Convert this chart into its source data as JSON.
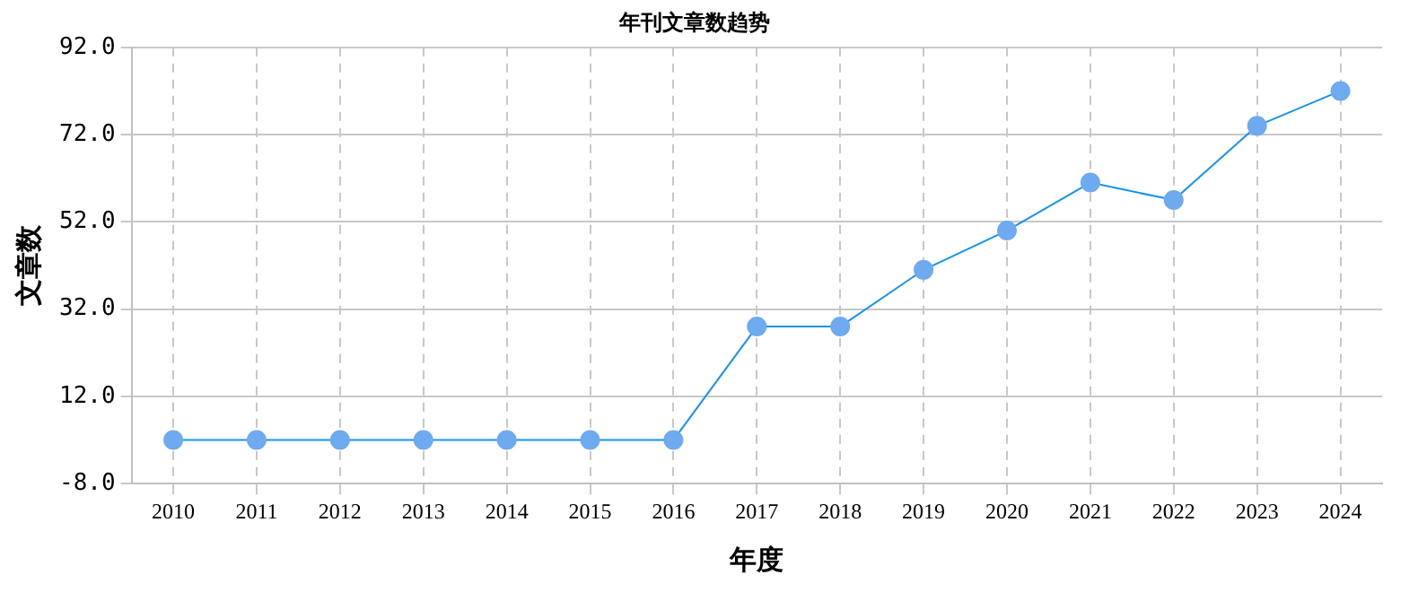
{
  "chart_data": {
    "type": "line",
    "title": "年刊文章数趋势",
    "xlabel": "年度",
    "ylabel": "文章数",
    "categories": [
      "2010",
      "2011",
      "2012",
      "2013",
      "2014",
      "2015",
      "2016",
      "2017",
      "2018",
      "2019",
      "2020",
      "2021",
      "2022",
      "2023",
      "2024"
    ],
    "series": [
      {
        "color": "#1493f0",
        "values": [
          2,
          2,
          2,
          2,
          2,
          2,
          2,
          28,
          28,
          41,
          50,
          61,
          57,
          74,
          82
        ]
      }
    ],
    "ylim": [
      -8,
      92
    ],
    "yticks": [
      {
        "value": -8,
        "label": "-8.0"
      },
      {
        "value": 12,
        "label": "12.0"
      },
      {
        "value": 32,
        "label": "32.0"
      },
      {
        "value": 52,
        "label": "52.0"
      },
      {
        "value": 72,
        "label": "72.0"
      },
      {
        "value": 92,
        "label": "92.0"
      }
    ],
    "grid": true,
    "legend": false,
    "marker": "circle",
    "line_style": "solid"
  }
}
